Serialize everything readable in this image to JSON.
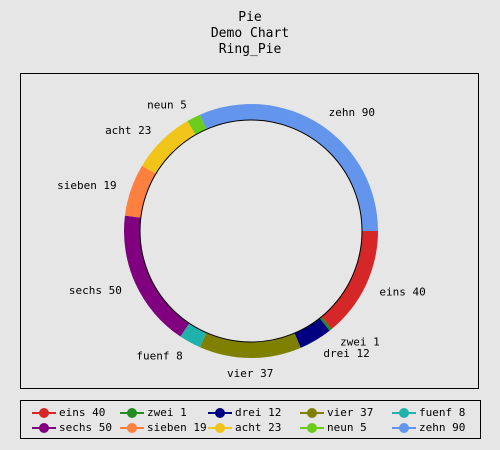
{
  "title_lines": [
    "Pie",
    "Demo Chart",
    "Ring_Pie"
  ],
  "chart_data": {
    "type": "pie",
    "style": "ring",
    "slices": [
      {
        "name": "eins",
        "value": 40,
        "color": "#d62728",
        "label": "eins 40"
      },
      {
        "name": "zwei",
        "value": 1,
        "color": "#228b22",
        "label": "zwei 1"
      },
      {
        "name": "drei",
        "value": 12,
        "color": "#000080",
        "label": "drei 12"
      },
      {
        "name": "vier",
        "value": 37,
        "color": "#808000",
        "label": "vier 37"
      },
      {
        "name": "fuenf",
        "value": 8,
        "color": "#20b2aa",
        "label": "fuenf 8"
      },
      {
        "name": "sechs",
        "value": 50,
        "color": "#800080",
        "label": "sechs 50"
      },
      {
        "name": "sieben",
        "value": 19,
        "color": "#ff7f3f",
        "label": "sieben 19"
      },
      {
        "name": "acht",
        "value": 23,
        "color": "#f0c419",
        "label": "acht 23"
      },
      {
        "name": "neun",
        "value": 5,
        "color": "#6ccc1c",
        "label": "neun 5"
      },
      {
        "name": "zehn",
        "value": 90,
        "color": "#6495ed",
        "label": "zehn 90"
      }
    ],
    "legend_position": "bottom"
  },
  "legend": [
    {
      "label": "eins 40",
      "color": "#d62728"
    },
    {
      "label": "zwei 1",
      "color": "#228b22"
    },
    {
      "label": "drei 12",
      "color": "#000080"
    },
    {
      "label": "vier 37",
      "color": "#808000"
    },
    {
      "label": "fuenf 8",
      "color": "#20b2aa"
    },
    {
      "label": "sechs 50",
      "color": "#800080"
    },
    {
      "label": "sieben 19",
      "color": "#ff7f3f"
    },
    {
      "label": "acht 23",
      "color": "#f0c419"
    },
    {
      "label": "neun 5",
      "color": "#6ccc1c"
    },
    {
      "label": "zehn 90",
      "color": "#6495ed"
    }
  ]
}
